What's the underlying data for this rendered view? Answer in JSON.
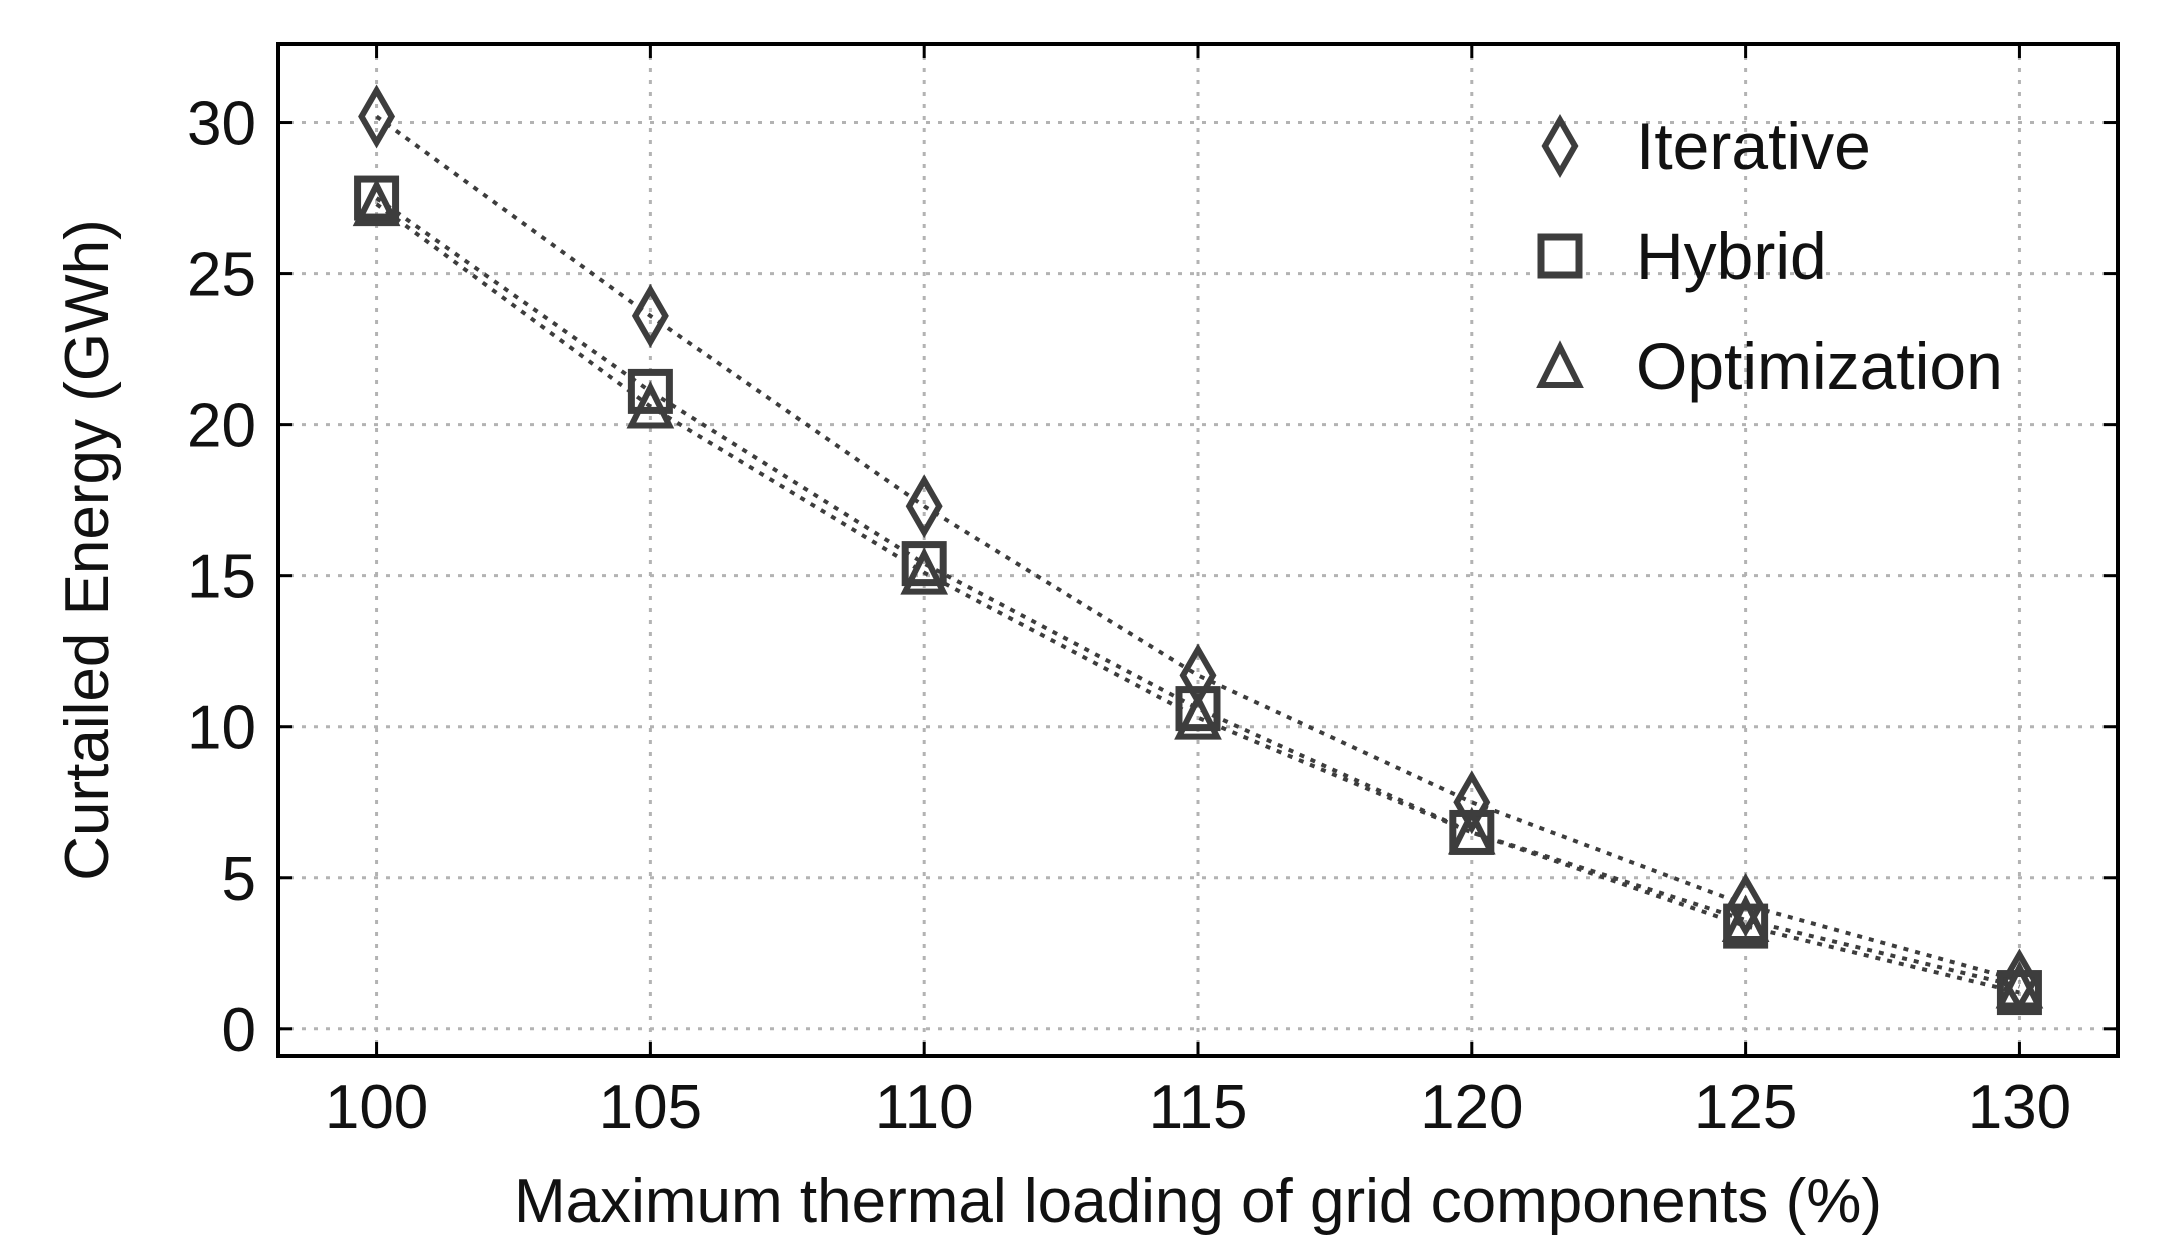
{
  "chart_data": {
    "type": "line",
    "title": "",
    "xlabel": "Maximum thermal loading of grid components (%)",
    "ylabel": "Curtailed Energy (GWh)",
    "x": [
      100,
      105,
      110,
      115,
      120,
      125,
      130
    ],
    "xlim": [
      98.2,
      131.8
    ],
    "ylim": [
      -0.9,
      32.6
    ],
    "xticks": [
      "100",
      "105",
      "110",
      "115",
      "120",
      "125",
      "130"
    ],
    "yticks": [
      "0",
      "5",
      "10",
      "15",
      "20",
      "25",
      "30"
    ],
    "grid": true,
    "legend_position": "top-right",
    "series": [
      {
        "name": "Iterative",
        "marker": "diamond",
        "values": [
          30.2,
          23.6,
          17.3,
          11.7,
          7.5,
          4.1,
          1.6
        ]
      },
      {
        "name": "Hybrid",
        "marker": "square",
        "values": [
          27.5,
          21.1,
          15.4,
          10.6,
          6.5,
          3.4,
          1.2
        ]
      },
      {
        "name": "Optimization",
        "marker": "triangle",
        "values": [
          27.3,
          20.6,
          15.1,
          10.3,
          6.5,
          3.6,
          1.4
        ]
      }
    ],
    "colors": {
      "series": "#3d3d3d",
      "grid": "#b3b3b3",
      "axis": "#000000"
    }
  }
}
